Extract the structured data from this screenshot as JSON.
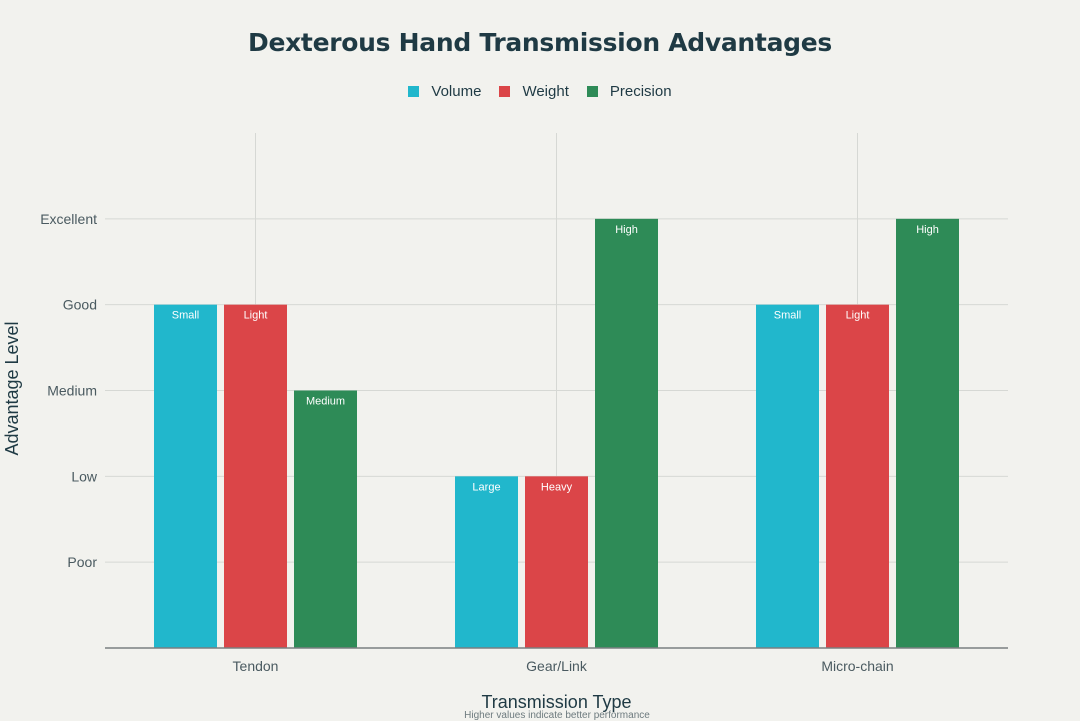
{
  "chart_data": {
    "type": "bar",
    "title": "Dexterous Hand Transmission Advantages",
    "xlabel": "Transmission Type",
    "ylabel": "Advantage Level",
    "footnote": "Higher values indicate better performance",
    "categories": [
      "Tendon",
      "Gear/Link",
      "Micro-chain"
    ],
    "y_tick_values": [
      1,
      2,
      3,
      4,
      5
    ],
    "y_tick_labels": [
      "Poor",
      "Low",
      "Medium",
      "Good",
      "Excellent"
    ],
    "ylim": [
      0,
      6
    ],
    "grid": true,
    "legend_position": "top-center",
    "series": [
      {
        "name": "Volume",
        "color": "#21b7cc",
        "values": [
          4,
          2,
          4
        ],
        "labels": [
          "Small",
          "Large",
          "Small"
        ]
      },
      {
        "name": "Weight",
        "color": "#db4548",
        "values": [
          4,
          2,
          4
        ],
        "labels": [
          "Light",
          "Heavy",
          "Light"
        ]
      },
      {
        "name": "Precision",
        "color": "#2e8b57",
        "values": [
          3,
          5,
          5
        ],
        "labels": [
          "Medium",
          "High",
          "High"
        ]
      }
    ]
  }
}
